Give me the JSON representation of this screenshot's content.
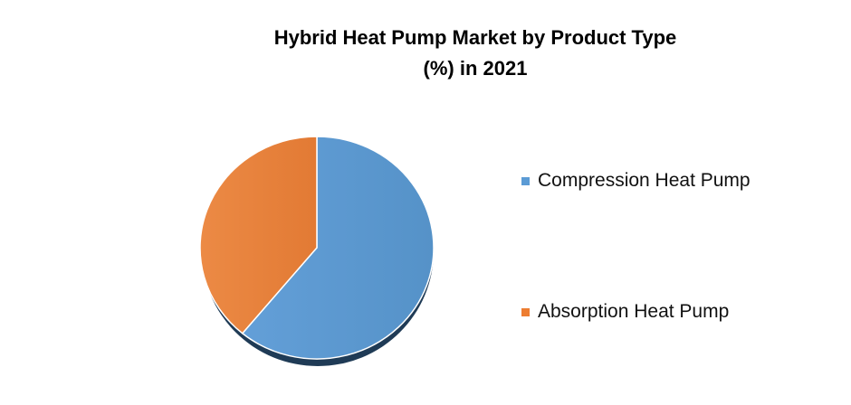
{
  "chart_data": {
    "type": "pie",
    "title": "Hybrid Heat Pump Market by Product Type",
    "title_line2": "(%) in 2021",
    "categories": [
      "Compression Heat Pump",
      "Absorption Heat Pump"
    ],
    "values": [
      61,
      39
    ],
    "colors": [
      "#5b9bd5",
      "#ed7d31"
    ],
    "legend_position": "right",
    "start_angle": "12 o'clock, clockwise"
  }
}
